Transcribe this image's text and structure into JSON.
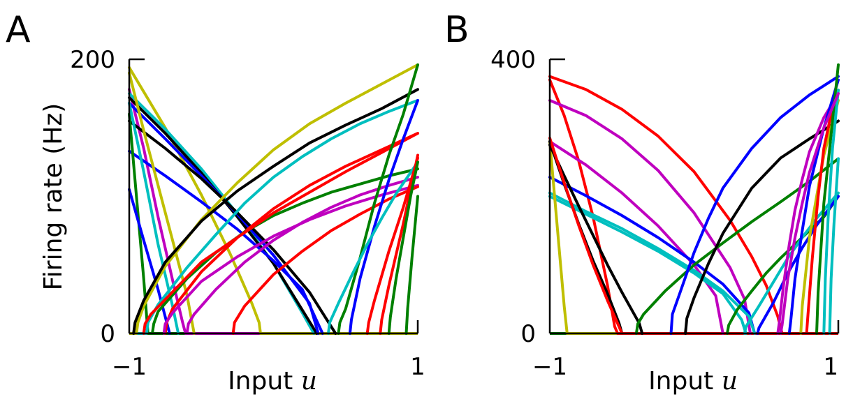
{
  "colors": {
    "b": "#0000ff",
    "g": "#008000",
    "r": "#ff0000",
    "c": "#00bfbf",
    "m": "#bf00bf",
    "y": "#bfbf00",
    "k": "#000000"
  },
  "chart_data": [
    {
      "type": "line",
      "panel_label": "A",
      "ylabel": "Firing rate (Hz)",
      "xlabel_prefix": "Input ",
      "xlabel_var": "u",
      "xlim": [
        -1,
        1
      ],
      "ylim": [
        0,
        200
      ],
      "xticks": [
        "−1",
        "1"
      ],
      "yticks": [
        "0",
        "200"
      ],
      "grid": false,
      "legend": "none",
      "series": [
        {
          "color": "y",
          "x": [
            -1,
            -0.75,
            -0.5,
            -0.3,
            -0.15,
            -0.1,
            -0.09
          ],
          "y": [
            194,
            150,
            101,
            58,
            22,
            8,
            0
          ]
        },
        {
          "color": "m",
          "x": [
            -1,
            -0.9,
            -0.8,
            -0.7,
            -0.63,
            -0.61
          ],
          "y": [
            178,
            135,
            85,
            39,
            8,
            0
          ]
        },
        {
          "color": "c",
          "x": [
            -1,
            -0.75,
            -0.5,
            -0.25,
            0,
            0.2,
            0.28
          ],
          "y": [
            175,
            149,
            120,
            87,
            51,
            15,
            0
          ]
        },
        {
          "color": "k",
          "x": [
            -1,
            -0.75,
            -0.5,
            -0.25,
            0,
            0.2,
            0.3
          ],
          "y": [
            172,
            146,
            117,
            85,
            51,
            17,
            0
          ]
        },
        {
          "color": "b",
          "x": [
            -1,
            -0.75,
            -0.5,
            -0.25,
            0,
            0.25,
            0.31
          ],
          "y": [
            168,
            142,
            115,
            87,
            57,
            22,
            0
          ]
        },
        {
          "color": "k",
          "x": [
            -1,
            -0.75,
            -0.5,
            -0.25,
            0,
            0.25,
            0.43
          ],
          "y": [
            155,
            135,
            113,
            88,
            61,
            30,
            0
          ]
        },
        {
          "color": "b",
          "x": [
            -1,
            -0.75,
            -0.5,
            -0.25,
            0,
            0.2,
            0.34
          ],
          "y": [
            133,
            115,
            96,
            76,
            53,
            32,
            0
          ]
        },
        {
          "color": "y",
          "x": [
            -1,
            -0.9,
            -0.8,
            -0.7,
            -0.6,
            -0.55
          ],
          "y": [
            190,
            148,
            108,
            68,
            28,
            0
          ]
        },
        {
          "color": "g",
          "x": [
            -1,
            -0.95,
            -0.9,
            -0.87
          ],
          "y": [
            160,
            100,
            40,
            0
          ]
        },
        {
          "color": "b",
          "x": [
            -1,
            -0.9,
            -0.8,
            -0.72
          ],
          "y": [
            105,
            68,
            32,
            0
          ]
        },
        {
          "color": "c",
          "x": [
            -1,
            -0.9,
            -0.8,
            -0.7,
            -0.66
          ],
          "y": [
            168,
            118,
            65,
            20,
            0
          ]
        },
        {
          "color": "y",
          "x": [
            -0.95,
            -0.94,
            -0.9,
            -0.75,
            -0.5,
            -0.25,
            0,
            0.25,
            0.5,
            0.75,
            1
          ],
          "y": [
            0,
            8,
            20,
            49,
            83,
            110,
            134,
            153,
            168,
            182,
            196
          ]
        },
        {
          "color": "k",
          "x": [
            -0.97,
            -0.96,
            -0.9,
            -0.75,
            -0.5,
            -0.25,
            0,
            0.25,
            0.5,
            0.75,
            1
          ],
          "y": [
            0,
            8,
            24,
            52,
            82,
            104,
            122,
            139,
            152,
            164,
            178
          ]
        },
        {
          "color": "c",
          "x": [
            -0.88,
            -0.87,
            -0.8,
            -0.6,
            -0.4,
            -0.2,
            0,
            0.2,
            0.4,
            0.6,
            0.8,
            1
          ],
          "y": [
            0,
            8,
            21,
            48,
            72,
            95,
            114,
            129,
            142,
            153,
            162,
            170
          ]
        },
        {
          "color": "r",
          "x": [
            -0.75,
            -0.74,
            -0.7,
            -0.5,
            -0.25,
            0,
            0.25,
            0.5,
            0.75,
            1
          ],
          "y": [
            0,
            8,
            18,
            45,
            70,
            91,
            108,
            122,
            134,
            146
          ]
        },
        {
          "color": "g",
          "x": [
            -0.84,
            -0.83,
            -0.8,
            -0.6,
            -0.4,
            -0.2,
            0,
            0.2,
            0.4,
            0.6,
            0.8,
            1
          ],
          "y": [
            0,
            7,
            16,
            40,
            59,
            74,
            86,
            95,
            103,
            109,
            115,
            120
          ]
        },
        {
          "color": "m",
          "x": [
            -0.76,
            -0.75,
            -0.7,
            -0.5,
            -0.25,
            0,
            0.25,
            0.5,
            0.75,
            1
          ],
          "y": [
            0,
            7,
            15,
            38,
            56,
            71,
            83,
            93,
            101,
            108
          ]
        },
        {
          "color": "m",
          "x": [
            -0.6,
            -0.59,
            -0.55,
            -0.4,
            -0.2,
            0,
            0.2,
            0.4,
            0.6,
            0.8,
            1
          ],
          "y": [
            0,
            7,
            14,
            32,
            52,
            68,
            81,
            92,
            101,
            108,
            114
          ]
        },
        {
          "color": "r",
          "x": [
            -0.28,
            -0.27,
            -0.2,
            0,
            0.2,
            0.4,
            0.6,
            0.8,
            1
          ],
          "y": [
            0,
            8,
            20,
            43,
            60,
            75,
            87,
            98,
            107
          ]
        },
        {
          "color": "r",
          "x": [
            -0.9,
            -0.89,
            -0.85,
            -0.5,
            0,
            0.5,
            1
          ],
          "y": [
            0,
            7,
            14,
            52,
            88,
            118,
            146
          ]
        },
        {
          "color": "g",
          "x": [
            0.45,
            0.46,
            0.5,
            0.6,
            0.7,
            0.8,
            0.9,
            1
          ],
          "y": [
            0,
            8,
            18,
            55,
            95,
            130,
            160,
            196
          ]
        },
        {
          "color": "b",
          "x": [
            0.53,
            0.54,
            0.6,
            0.7,
            0.8,
            0.9,
            1
          ],
          "y": [
            0,
            10,
            40,
            78,
            112,
            142,
            170
          ]
        },
        {
          "color": "c",
          "x": [
            0.38,
            0.39,
            0.45,
            0.55,
            0.65,
            0.75,
            0.85,
            1
          ],
          "y": [
            0,
            8,
            22,
            44,
            65,
            84,
            102,
            125
          ]
        },
        {
          "color": "r",
          "x": [
            0.65,
            0.66,
            0.7,
            0.8,
            0.9,
            1
          ],
          "y": [
            0,
            8,
            24,
            60,
            92,
            128
          ]
        },
        {
          "color": "r",
          "x": [
            0.74,
            0.75,
            0.8,
            0.9,
            1
          ],
          "y": [
            0,
            10,
            35,
            80,
            130
          ]
        },
        {
          "color": "g",
          "x": [
            0.8,
            0.81,
            0.85,
            0.9,
            0.95,
            1
          ],
          "y": [
            0,
            12,
            40,
            70,
            100,
            125
          ]
        },
        {
          "color": "g",
          "x": [
            0.92,
            0.93,
            0.96,
            1
          ],
          "y": [
            0,
            18,
            55,
            100
          ]
        }
      ]
    },
    {
      "type": "line",
      "panel_label": "B",
      "ylabel": "",
      "xlabel_prefix": "Input ",
      "xlabel_var": "u",
      "xlim": [
        -1,
        1
      ],
      "ylim": [
        0,
        400
      ],
      "xticks": [
        "−1",
        "1"
      ],
      "yticks": [
        "0",
        "400"
      ],
      "grid": false,
      "legend": "none",
      "series": [
        {
          "color": "r",
          "x": [
            -1,
            -0.75,
            -0.5,
            -0.25,
            0,
            0.25,
            0.4,
            0.5,
            0.58,
            0.61
          ],
          "y": [
            375,
            356,
            327,
            288,
            236,
            165,
            112,
            70,
            25,
            0
          ]
        },
        {
          "color": "r",
          "x": [
            -1,
            -0.9,
            -0.8,
            -0.7,
            -0.6,
            -0.55,
            -0.53
          ],
          "y": [
            370,
            318,
            252,
            170,
            70,
            10,
            0
          ]
        },
        {
          "color": "m",
          "x": [
            -1,
            -0.75,
            -0.5,
            -0.25,
            0,
            0.25,
            0.35,
            0.39
          ],
          "y": [
            340,
            318,
            284,
            238,
            176,
            96,
            50,
            0
          ]
        },
        {
          "color": "m",
          "x": [
            -1,
            -0.75,
            -0.5,
            -0.25,
            0,
            0.15,
            0.2
          ],
          "y": [
            280,
            246,
            205,
            157,
            100,
            55,
            0
          ]
        },
        {
          "color": "b",
          "x": [
            -1,
            -0.75,
            -0.5,
            -0.25,
            0,
            0.2,
            0.38,
            0.42
          ],
          "y": [
            228,
            201,
            172,
            140,
            104,
            72,
            30,
            0
          ]
        },
        {
          "color": "c",
          "x": [
            -1,
            -0.75,
            -0.5,
            -0.25,
            0,
            0.2,
            0.38,
            0.42
          ],
          "y": [
            205,
            178,
            153,
            124,
            92,
            62,
            25,
            0
          ]
        },
        {
          "color": "c",
          "x": [
            -1,
            -0.75,
            -0.5,
            -0.25,
            0,
            0.2,
            0.33,
            0.36
          ],
          "y": [
            200,
            174,
            148,
            120,
            88,
            58,
            20,
            0
          ]
        },
        {
          "color": "y",
          "x": [
            -1,
            -0.95,
            -0.9,
            -0.88
          ],
          "y": [
            280,
            160,
            40,
            0
          ]
        },
        {
          "color": "k",
          "x": [
            -1,
            -0.9,
            -0.8,
            -0.7,
            -0.6,
            -0.52,
            -0.5
          ],
          "y": [
            280,
            218,
            160,
            106,
            58,
            15,
            0
          ]
        },
        {
          "color": "k",
          "x": [
            -1,
            -0.9,
            -0.8,
            -0.7,
            -0.6,
            -0.5,
            -0.38,
            -0.36
          ],
          "y": [
            275,
            230,
            186,
            143,
            100,
            60,
            15,
            0
          ]
        },
        {
          "color": "r",
          "x": [
            -1,
            -0.9,
            -0.8,
            -0.7,
            -0.6,
            -0.52,
            -0.5
          ],
          "y": [
            285,
            220,
            158,
            100,
            48,
            10,
            0
          ]
        },
        {
          "color": "g",
          "x": [
            -0.4,
            -0.39,
            -0.35,
            -0.2,
            0,
            0.2,
            0.4,
            0.6,
            0.8,
            1
          ],
          "y": [
            0,
            14,
            28,
            62,
            100,
            132,
            163,
            192,
            222,
            255
          ]
        },
        {
          "color": "b",
          "x": [
            -0.16,
            -0.15,
            -0.1,
            0,
            0.1,
            0.2,
            0.4,
            0.6,
            0.8,
            1
          ],
          "y": [
            0,
            28,
            58,
            118,
            168,
            212,
            270,
            315,
            348,
            375
          ]
        },
        {
          "color": "k",
          "x": [
            -0.06,
            -0.05,
            0,
            0.1,
            0.2,
            0.4,
            0.6,
            0.8,
            1
          ],
          "y": [
            0,
            22,
            52,
            102,
            146,
            212,
            256,
            284,
            310
          ]
        },
        {
          "color": "g",
          "x": [
            0.23,
            0.24,
            0.3,
            0.4,
            0.5,
            0.6,
            0.7,
            0.8,
            0.9,
            1
          ],
          "y": [
            0,
            12,
            35,
            62,
            88,
            110,
            130,
            150,
            170,
            200
          ]
        },
        {
          "color": "c",
          "x": [
            0.35,
            0.36,
            0.45,
            0.55,
            0.65,
            0.75,
            0.85,
            1
          ],
          "y": [
            0,
            10,
            40,
            75,
            110,
            140,
            168,
            205
          ]
        },
        {
          "color": "b",
          "x": [
            0.44,
            0.45,
            0.55,
            0.65,
            0.75,
            0.85,
            1
          ],
          "y": [
            0,
            8,
            45,
            88,
            125,
            158,
            200
          ]
        },
        {
          "color": "m",
          "x": [
            0.58,
            0.59,
            0.62,
            0.66,
            0.7,
            0.75,
            0.8,
            0.9,
            1
          ],
          "y": [
            0,
            14,
            70,
            130,
            180,
            225,
            265,
            315,
            350
          ]
        },
        {
          "color": "b",
          "x": [
            0.66,
            0.67,
            0.7,
            0.75,
            0.8,
            0.9,
            1
          ],
          "y": [
            0,
            18,
            80,
            150,
            215,
            300,
            370
          ]
        },
        {
          "color": "y",
          "x": [
            0.74,
            0.75,
            0.8,
            0.9,
            1
          ],
          "y": [
            0,
            40,
            140,
            260,
            340
          ]
        },
        {
          "color": "r",
          "x": [
            0.78,
            0.79,
            0.82,
            0.86,
            0.9,
            0.95,
            1
          ],
          "y": [
            0,
            28,
            110,
            200,
            270,
            320,
            355
          ]
        },
        {
          "color": "g",
          "x": [
            0.85,
            0.86,
            0.9,
            0.95,
            1
          ],
          "y": [
            0,
            60,
            190,
            290,
            392
          ]
        },
        {
          "color": "c",
          "x": [
            0.9,
            0.91,
            0.93,
            0.96,
            1
          ],
          "y": [
            0,
            80,
            170,
            270,
            355
          ]
        },
        {
          "color": "c",
          "x": [
            0.94,
            0.95,
            0.97,
            1
          ],
          "y": [
            0,
            80,
            160,
            255
          ]
        },
        {
          "color": "m",
          "x": [
            0.6,
            0.61,
            0.65,
            0.7,
            0.75,
            0.8,
            0.9,
            1
          ],
          "y": [
            0,
            12,
            80,
            140,
            190,
            235,
            300,
            350
          ]
        }
      ]
    }
  ]
}
